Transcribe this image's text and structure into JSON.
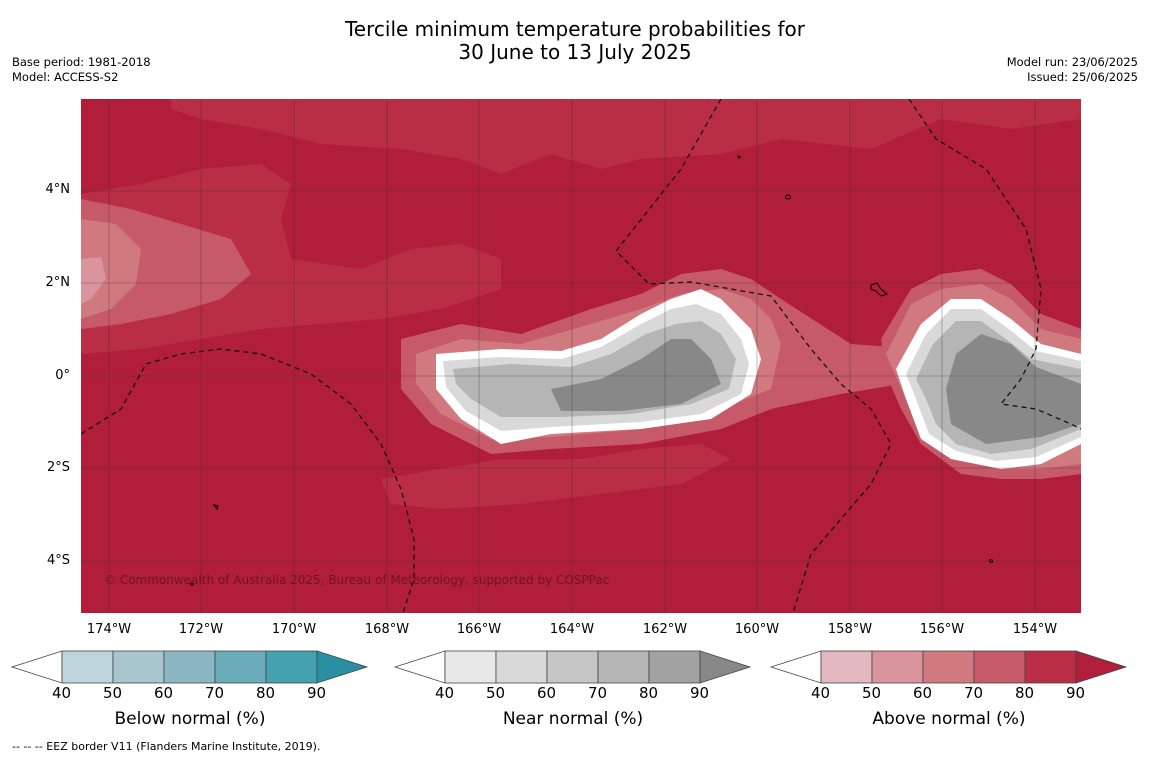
{
  "title": {
    "line1": "Tercile minimum temperature probabilities for",
    "line2": "30 June to 13 July 2025"
  },
  "meta_left": {
    "base_period": "Base period: 1981-2018",
    "model": "Model: ACCESS-S2"
  },
  "meta_right": {
    "model_run": "Model run: 23/06/2025",
    "issued": "Issued: 25/06/2025"
  },
  "map": {
    "latitude_labels": [
      "4°N",
      "2°N",
      "0°",
      "2°S",
      "4°S"
    ],
    "longitude_labels": [
      "174°W",
      "172°W",
      "170°W",
      "168°W",
      "166°W",
      "164°W",
      "162°W",
      "160°W",
      "158°W",
      "156°W",
      "154°W"
    ],
    "copyright": "© Commonwealth of Australia 2025, Bureau of Meteorology, supported by COSPPac"
  },
  "colorbars": [
    {
      "title": "Below normal (%)",
      "ticks": [
        "40",
        "50",
        "60",
        "70",
        "80",
        "90"
      ],
      "colors": [
        "#bfd5dc",
        "#a8c6cd",
        "#8ab7c3",
        "#6aacba",
        "#45a0b0",
        "#2a8fa3"
      ]
    },
    {
      "title": "Near normal (%)",
      "ticks": [
        "40",
        "50",
        "60",
        "70",
        "80",
        "90"
      ],
      "colors": [
        "#e8e8e8",
        "#d9d9d9",
        "#c6c6c6",
        "#b5b5b5",
        "#a2a2a2",
        "#888888"
      ]
    },
    {
      "title": "Above normal (%)",
      "ticks": [
        "40",
        "50",
        "60",
        "70",
        "80",
        "90"
      ],
      "colors": [
        "#e3b8c0",
        "#d9949e",
        "#d0797f",
        "#c65a68",
        "#b92e44",
        "#b01e3a"
      ]
    }
  ],
  "footnote": "--  --  -- EEZ border V11 (Flanders Marine Institute, 2019)."
}
